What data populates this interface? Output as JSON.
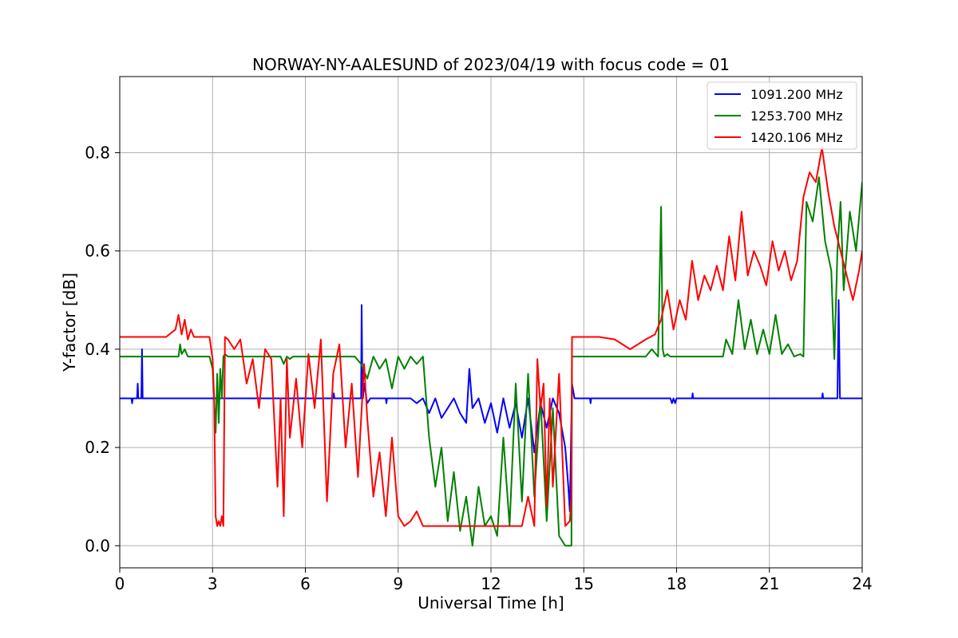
{
  "chart_data": {
    "type": "line",
    "title": "NORWAY-NY-AALESUND of 2023/04/19 with focus code = 01",
    "xlabel": "Universal Time [h]",
    "ylabel": "Y-factor [dB]",
    "xlim": [
      0,
      24
    ],
    "ylim": [
      -0.045,
      0.955
    ],
    "xticks": [
      0,
      3,
      6,
      9,
      12,
      15,
      18,
      21,
      24
    ],
    "yticks": [
      0.0,
      0.2,
      0.4,
      0.6,
      0.8
    ],
    "ytick_labels": [
      "0.0",
      "0.2",
      "0.4",
      "0.6",
      "0.8"
    ],
    "grid": true,
    "legend_position": "top-right",
    "series": [
      {
        "name": "1091.200 MHz",
        "color": "#0000ff",
        "x": [
          0.0,
          0.38,
          0.4,
          0.42,
          0.56,
          0.58,
          0.6,
          0.7,
          0.72,
          0.74,
          0.76,
          2.0,
          6.9,
          6.92,
          6.94,
          7.8,
          7.82,
          7.84,
          7.86,
          7.9,
          8.0,
          8.1,
          8.2,
          8.6,
          8.62,
          8.64,
          9.4,
          9.6,
          9.8,
          10.0,
          10.2,
          10.4,
          10.6,
          10.8,
          11.0,
          11.2,
          11.3,
          11.4,
          11.6,
          11.8,
          12.0,
          12.2,
          12.4,
          12.6,
          12.8,
          13.0,
          13.2,
          13.4,
          13.6,
          13.8,
          14.0,
          14.2,
          14.4,
          14.5,
          14.55,
          14.62,
          14.7,
          14.8,
          15.2,
          15.22,
          15.24,
          17.8,
          17.85,
          17.9,
          17.95,
          18.0,
          18.5,
          18.52,
          18.54,
          22.7,
          22.72,
          22.74,
          23.2,
          23.24,
          23.28,
          23.32,
          24.0
        ],
        "values": [
          0.3,
          0.3,
          0.29,
          0.3,
          0.3,
          0.33,
          0.3,
          0.3,
          0.4,
          0.3,
          0.3,
          0.3,
          0.3,
          0.31,
          0.3,
          0.3,
          0.49,
          0.34,
          0.3,
          0.33,
          0.29,
          0.3,
          0.3,
          0.3,
          0.29,
          0.3,
          0.3,
          0.29,
          0.3,
          0.27,
          0.3,
          0.26,
          0.28,
          0.3,
          0.27,
          0.25,
          0.36,
          0.28,
          0.3,
          0.25,
          0.29,
          0.23,
          0.3,
          0.24,
          0.29,
          0.22,
          0.3,
          0.19,
          0.29,
          0.24,
          0.3,
          0.27,
          0.2,
          0.12,
          0.07,
          0.33,
          0.3,
          0.3,
          0.3,
          0.29,
          0.3,
          0.3,
          0.29,
          0.3,
          0.29,
          0.3,
          0.3,
          0.31,
          0.3,
          0.3,
          0.31,
          0.3,
          0.3,
          0.5,
          0.3,
          0.3,
          0.3
        ]
      },
      {
        "name": "1253.700 MHz",
        "color": "#008000",
        "x": [
          0.0,
          1.9,
          1.95,
          2.0,
          2.1,
          2.2,
          2.9,
          3.0,
          3.05,
          3.1,
          3.15,
          3.2,
          3.25,
          3.3,
          3.35,
          3.4,
          3.5,
          5.2,
          5.3,
          5.4,
          5.5,
          5.6,
          7.6,
          7.8,
          8.0,
          8.2,
          8.4,
          8.6,
          8.8,
          9.0,
          9.2,
          9.4,
          9.6,
          9.8,
          10.0,
          10.2,
          10.4,
          10.6,
          10.8,
          11.0,
          11.2,
          11.4,
          11.6,
          11.8,
          12.0,
          12.2,
          12.4,
          12.6,
          12.8,
          13.0,
          13.2,
          13.4,
          13.6,
          13.8,
          14.0,
          14.2,
          14.4,
          14.6,
          14.62,
          16.0,
          16.5,
          17.0,
          17.2,
          17.4,
          17.5,
          17.55,
          17.6,
          17.7,
          17.8,
          17.9,
          18.0,
          18.5,
          19.0,
          19.5,
          19.6,
          19.8,
          20.0,
          20.2,
          20.4,
          20.6,
          20.8,
          21.0,
          21.2,
          21.4,
          21.6,
          21.8,
          22.0,
          22.1,
          22.2,
          22.4,
          22.6,
          22.8,
          23.0,
          23.1,
          23.2,
          23.3,
          23.4,
          23.6,
          23.8,
          24.0
        ],
        "values": [
          0.385,
          0.385,
          0.41,
          0.39,
          0.4,
          0.385,
          0.385,
          0.36,
          0.3,
          0.23,
          0.35,
          0.25,
          0.36,
          0.3,
          0.385,
          0.39,
          0.385,
          0.385,
          0.37,
          0.385,
          0.38,
          0.385,
          0.385,
          0.37,
          0.34,
          0.385,
          0.36,
          0.38,
          0.32,
          0.385,
          0.36,
          0.385,
          0.37,
          0.385,
          0.22,
          0.12,
          0.2,
          0.05,
          0.15,
          0.03,
          0.1,
          0.0,
          0.12,
          0.04,
          0.06,
          0.02,
          0.22,
          0.04,
          0.33,
          0.09,
          0.35,
          0.1,
          0.3,
          0.05,
          0.28,
          0.02,
          0.0,
          0.0,
          0.385,
          0.385,
          0.385,
          0.385,
          0.4,
          0.385,
          0.69,
          0.4,
          0.385,
          0.39,
          0.385,
          0.385,
          0.385,
          0.385,
          0.385,
          0.385,
          0.42,
          0.39,
          0.5,
          0.4,
          0.46,
          0.39,
          0.44,
          0.39,
          0.47,
          0.39,
          0.41,
          0.385,
          0.39,
          0.385,
          0.7,
          0.66,
          0.75,
          0.62,
          0.56,
          0.38,
          0.6,
          0.7,
          0.52,
          0.68,
          0.6,
          0.74
        ]
      },
      {
        "name": "1420.106 MHz",
        "color": "#ff0000",
        "x": [
          0.0,
          1.5,
          1.6,
          1.8,
          1.9,
          2.0,
          2.1,
          2.2,
          2.3,
          2.4,
          2.5,
          2.9,
          3.0,
          3.05,
          3.1,
          3.15,
          3.2,
          3.25,
          3.3,
          3.35,
          3.4,
          3.5,
          3.7,
          3.9,
          4.1,
          4.3,
          4.5,
          4.7,
          4.9,
          5.1,
          5.2,
          5.3,
          5.4,
          5.5,
          5.7,
          5.9,
          6.1,
          6.3,
          6.5,
          6.7,
          6.9,
          7.1,
          7.3,
          7.5,
          7.7,
          7.9,
          8.0,
          8.2,
          8.4,
          8.6,
          8.8,
          9.0,
          9.2,
          9.4,
          9.6,
          9.8,
          10.0,
          10.5,
          11.0,
          11.5,
          12.0,
          12.5,
          13.0,
          13.2,
          13.4,
          13.5,
          13.6,
          13.7,
          13.8,
          13.9,
          14.0,
          14.2,
          14.4,
          14.55,
          14.6,
          14.62,
          15.0,
          15.5,
          16.0,
          16.5,
          17.0,
          17.3,
          17.5,
          17.7,
          17.9,
          18.1,
          18.3,
          18.5,
          18.7,
          18.9,
          19.1,
          19.3,
          19.5,
          19.7,
          19.9,
          20.1,
          20.3,
          20.5,
          20.7,
          20.9,
          21.1,
          21.3,
          21.5,
          21.7,
          21.9,
          22.1,
          22.3,
          22.5,
          22.7,
          22.9,
          23.1,
          23.3,
          23.5,
          23.7,
          23.9,
          24.0
        ],
        "values": [
          0.425,
          0.425,
          0.43,
          0.44,
          0.47,
          0.43,
          0.46,
          0.42,
          0.44,
          0.425,
          0.425,
          0.425,
          0.38,
          0.3,
          0.06,
          0.04,
          0.05,
          0.04,
          0.06,
          0.04,
          0.425,
          0.42,
          0.4,
          0.42,
          0.33,
          0.38,
          0.28,
          0.4,
          0.38,
          0.12,
          0.3,
          0.06,
          0.38,
          0.22,
          0.34,
          0.2,
          0.39,
          0.28,
          0.42,
          0.09,
          0.35,
          0.41,
          0.2,
          0.33,
          0.14,
          0.37,
          0.26,
          0.1,
          0.19,
          0.06,
          0.22,
          0.06,
          0.04,
          0.05,
          0.07,
          0.04,
          0.04,
          0.04,
          0.04,
          0.04,
          0.04,
          0.04,
          0.04,
          0.1,
          0.04,
          0.38,
          0.28,
          0.33,
          0.08,
          0.3,
          0.12,
          0.35,
          0.04,
          0.05,
          0.1,
          0.425,
          0.425,
          0.425,
          0.42,
          0.4,
          0.42,
          0.43,
          0.46,
          0.52,
          0.44,
          0.5,
          0.46,
          0.58,
          0.5,
          0.55,
          0.52,
          0.57,
          0.52,
          0.63,
          0.54,
          0.68,
          0.55,
          0.6,
          0.57,
          0.53,
          0.62,
          0.56,
          0.6,
          0.54,
          0.58,
          0.71,
          0.76,
          0.74,
          0.81,
          0.72,
          0.65,
          0.6,
          0.55,
          0.5,
          0.56,
          0.6
        ]
      }
    ]
  }
}
